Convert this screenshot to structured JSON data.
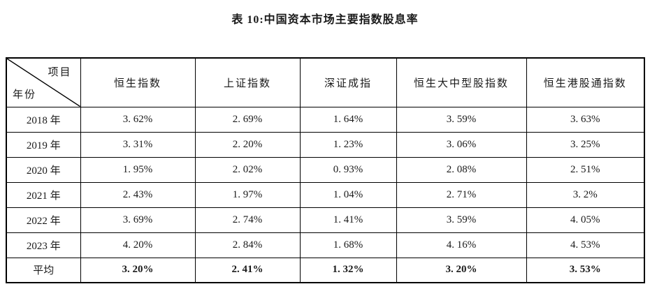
{
  "title": "表 10:中国资本市场主要指数股息率",
  "table": {
    "corner": {
      "top_right": "项目",
      "bottom_left": "年份"
    },
    "columns": [
      "恒生指数",
      "上证指数",
      "深证成指",
      "恒生大中型股指数",
      "恒生港股通指数"
    ],
    "rows": [
      {
        "label": "2018 年",
        "values": [
          "3.62%",
          "2.69%",
          "1.64%",
          "3.59%",
          "3.63%"
        ],
        "emphasis": false
      },
      {
        "label": "2019 年",
        "values": [
          "3.31%",
          "2.20%",
          "1.23%",
          "3.06%",
          "3.25%"
        ],
        "emphasis": false
      },
      {
        "label": "2020 年",
        "values": [
          "1.95%",
          "2.02%",
          "0.93%",
          "2.08%",
          "2.51%"
        ],
        "emphasis": false
      },
      {
        "label": "2021 年",
        "values": [
          "2.43%",
          "1.97%",
          "1.04%",
          "2.71%",
          "3.2%"
        ],
        "emphasis": false
      },
      {
        "label": "2022 年",
        "values": [
          "3.69%",
          "2.74%",
          "1.41%",
          "3.59%",
          "4.05%"
        ],
        "emphasis": false
      },
      {
        "label": "2023 年",
        "values": [
          "4.20%",
          "2.84%",
          "1.68%",
          "4.16%",
          "4.53%"
        ],
        "emphasis": false
      },
      {
        "label": "平均",
        "values": [
          "3.20%",
          "2.41%",
          "1.32%",
          "3.20%",
          "3.53%"
        ],
        "emphasis": true
      }
    ]
  },
  "colors": {
    "border": "#000000",
    "text": "#1a1a1a",
    "background": "#ffffff"
  }
}
